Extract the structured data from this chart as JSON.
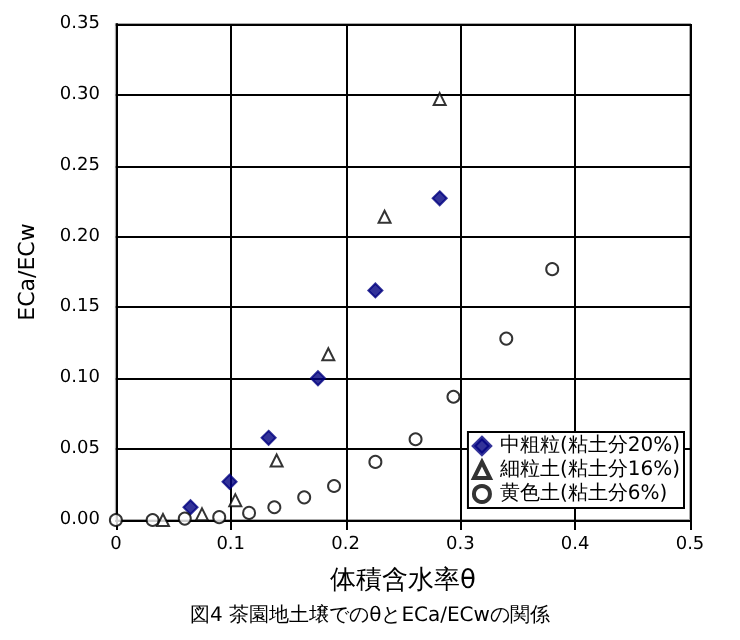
{
  "chart_data": {
    "type": "scatter",
    "title": "図4 茶園地土壌でのθとECa/ECwの関係",
    "xlabel": "体積含水率θ",
    "ylabel": "ECa/ECw",
    "xlim": [
      0,
      0.5
    ],
    "xticks": [
      {
        "value": 0,
        "label": "0"
      },
      0.1,
      0.2,
      0.3,
      0.4,
      0.5
    ],
    "ylim": [
      0,
      0.35
    ],
    "yticks": [
      {
        "value": 0,
        "label": "0.00"
      },
      0.05,
      {
        "value": 0.1,
        "label": "0.10"
      },
      0.15,
      {
        "value": 0.2,
        "label": "0.20"
      },
      0.25,
      {
        "value": 0.3,
        "label": "0.30"
      },
      0.35
    ],
    "grid": true,
    "legend": "bottom right",
    "series": [
      {
        "name": "中粗粒(粘土分20%)",
        "color": "#000080",
        "marker": "diamond",
        "x": [
          0.065,
          0.099,
          0.133,
          0.176,
          0.226,
          0.282
        ],
        "values": [
          0.009,
          0.027,
          0.058,
          0.1,
          0.162,
          0.227
        ]
      },
      {
        "name": "細粒土(粘土分16%)",
        "color": "#000000",
        "marker": "triangle",
        "x": [
          0.041,
          0.075,
          0.104,
          0.14,
          0.185,
          0.234,
          0.282
        ],
        "values": [
          0,
          0.004,
          0.014,
          0.042,
          0.117,
          0.214,
          0.297
        ]
      },
      {
        "name": "黄色土(粘土分6%)",
        "color": "#000000",
        "marker": "circle",
        "x": [
          0,
          0.032,
          0.06,
          0.09,
          0.116,
          0.138,
          0.164,
          0.19,
          0.226,
          0.261,
          0.294,
          0.34,
          0.38
        ],
        "values": [
          0,
          0,
          0.001,
          0.002,
          0.005,
          0.009,
          0.016,
          0.024,
          0.041,
          0.057,
          0.087,
          0.128,
          0.177
        ]
      }
    ]
  }
}
